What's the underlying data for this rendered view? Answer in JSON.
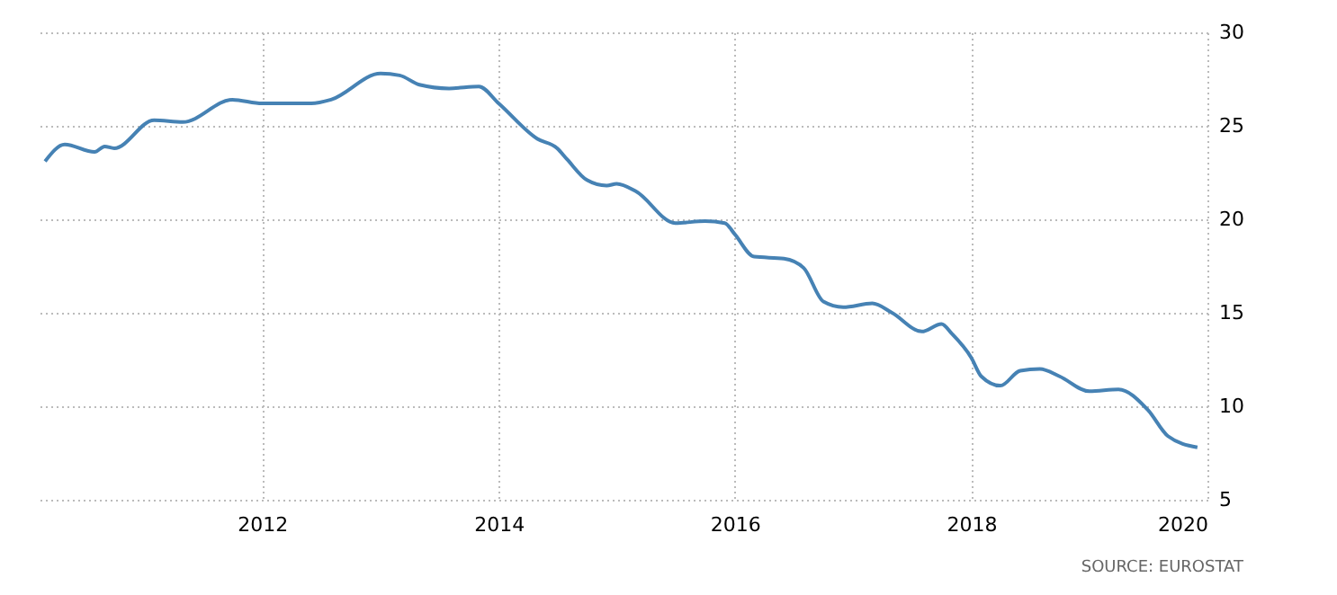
{
  "chart_data": {
    "type": "line",
    "x": [
      "2010-03",
      "2010-05",
      "2010-08",
      "2010-09",
      "2010-10",
      "2011-02",
      "2011-05",
      "2011-10",
      "2012-01",
      "2012-03",
      "2012-06",
      "2012-08",
      "2013-01",
      "2013-03",
      "2013-05",
      "2013-08",
      "2013-11",
      "2014-01",
      "2014-05",
      "2014-07",
      "2014-08",
      "2014-10",
      "2014-12",
      "2015-01",
      "2015-03",
      "2015-07",
      "2015-10",
      "2015-12",
      "2016-01",
      "2016-03",
      "2016-06",
      "2016-08",
      "2016-10",
      "2016-12",
      "2017-03",
      "2017-05",
      "2017-08",
      "2017-10",
      "2017-11",
      "2018-01",
      "2018-02",
      "2018-04",
      "2018-06",
      "2018-08",
      "2018-10",
      "2019-01",
      "2019-04",
      "2019-07",
      "2019-09",
      "2019-12"
    ],
    "series": [
      {
        "color": "#4682b4",
        "values": [
          23.1,
          24.0,
          23.6,
          23.9,
          23.8,
          25.3,
          25.2,
          26.4,
          26.2,
          26.2,
          26.2,
          26.4,
          27.8,
          27.7,
          27.2,
          27.0,
          27.1,
          26.2,
          24.3,
          23.8,
          23.2,
          22.1,
          21.8,
          21.9,
          21.5,
          19.8,
          19.9,
          19.8,
          19.2,
          18.0,
          17.9,
          17.4,
          15.6,
          15.3,
          15.5,
          15.0,
          14.0,
          14.4,
          13.9,
          12.6,
          11.6,
          11.1,
          11.9,
          12.0,
          11.6,
          10.8,
          10.9,
          9.8,
          8.4,
          7.8
        ]
      }
    ],
    "xlim": [
      "2010-02",
      "2020-01"
    ],
    "xticks": [
      "2012",
      "2014",
      "2016",
      "2018",
      "2020"
    ],
    "ylim": [
      5,
      30
    ],
    "yticks": [
      5,
      10,
      15,
      20,
      25,
      30
    ],
    "grid": true,
    "line_style": "solid",
    "marker": "none",
    "annotations": [
      "SOURCE: EUROSTAT"
    ]
  }
}
